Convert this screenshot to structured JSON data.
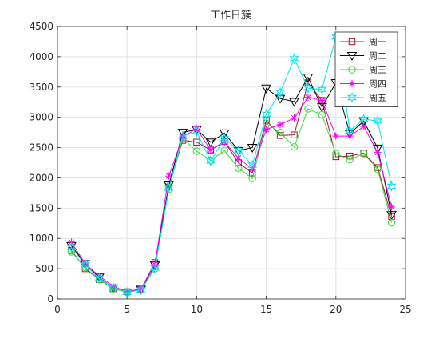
{
  "chart_data": {
    "type": "line",
    "title": "工作日簇",
    "xlabel": "",
    "ylabel": "",
    "xlim": [
      0,
      25
    ],
    "ylim": [
      0,
      4500
    ],
    "xticks": [
      0,
      5,
      10,
      15,
      20,
      25
    ],
    "yticks": [
      0,
      500,
      1000,
      1500,
      2000,
      2500,
      3000,
      3500,
      4000,
      4500
    ],
    "grid": true,
    "legend_position": "top-right",
    "x": [
      1,
      2,
      3,
      4,
      5,
      6,
      7,
      8,
      9,
      10,
      11,
      12,
      13,
      14,
      15,
      16,
      17,
      18,
      19,
      20,
      21,
      22,
      23,
      24
    ],
    "series": [
      {
        "name": "周一",
        "color": "#a2142f",
        "marker": "square",
        "values": [
          800,
          500,
          320,
          170,
          120,
          160,
          600,
          1850,
          2620,
          2590,
          2460,
          2600,
          2250,
          2080,
          2950,
          2700,
          2710,
          3570,
          3280,
          2350,
          2360,
          2410,
          2170,
          1360
        ]
      },
      {
        "name": "周二",
        "color": "#000000",
        "marker": "triangle-down",
        "values": [
          880,
          580,
          360,
          180,
          110,
          160,
          560,
          1880,
          2750,
          2800,
          2590,
          2740,
          2450,
          2500,
          3480,
          3310,
          3260,
          3660,
          3170,
          3570,
          2730,
          2940,
          2490,
          1390
        ]
      },
      {
        "name": "周三",
        "color": "#33dd33",
        "marker": "circle",
        "values": [
          780,
          520,
          320,
          170,
          110,
          150,
          500,
          1810,
          2650,
          2440,
          2290,
          2450,
          2160,
          1990,
          2900,
          2750,
          2510,
          3140,
          3040,
          2400,
          2300,
          2400,
          2140,
          1260
        ]
      },
      {
        "name": "周四",
        "color": "#ff00ff",
        "marker": "asterisk",
        "values": [
          940,
          580,
          380,
          210,
          120,
          170,
          570,
          2030,
          2680,
          2810,
          2460,
          2590,
          2330,
          2140,
          2800,
          2880,
          2990,
          3330,
          3280,
          2690,
          2690,
          2850,
          2420,
          1520
        ]
      },
      {
        "name": "周五",
        "color": "#00e5ee",
        "marker": "hexagram",
        "values": [
          850,
          560,
          340,
          190,
          110,
          150,
          510,
          1830,
          2690,
          2760,
          2280,
          2650,
          2450,
          2210,
          3050,
          3410,
          3970,
          3480,
          3460,
          4330,
          2780,
          2970,
          2940,
          1860
        ]
      }
    ]
  }
}
